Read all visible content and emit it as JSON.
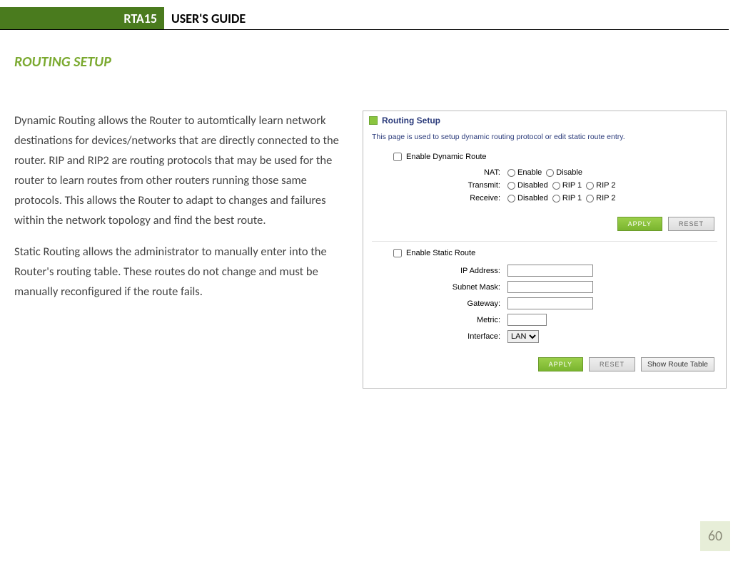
{
  "header": {
    "product": "RTA15",
    "doc_title": "USER'S GUIDE"
  },
  "section_title": "ROUTING SETUP",
  "paragraphs": [
    "Dynamic Routing allows the Router to automtically learn network destinations for devices/networks that are directly connected to the router. RIP and RIP2 are routing protocols that may be used for the router to learn routes from other routers running those same protocols. This allows the Router to adapt to changes and failures within the network topology and find the best route.",
    "Static Routing allows the administrator to manually enter into the Router's routing table. These routes do not change and must be manually reconfigured if the route fails."
  ],
  "screenshot": {
    "panel_title": "Routing Setup",
    "panel_desc": "This page is used to setup dynamic routing protocol or edit static route entry.",
    "dynamic": {
      "enable_label": "Enable Dynamic Route",
      "nat_label": "NAT:",
      "nat_options": [
        "Enable",
        "Disable"
      ],
      "transmit_label": "Transmit:",
      "transmit_options": [
        "Disabled",
        "RIP 1",
        "RIP 2"
      ],
      "receive_label": "Receive:",
      "receive_options": [
        "Disabled",
        "RIP 1",
        "RIP 2"
      ]
    },
    "static": {
      "enable_label": "Enable Static Route",
      "ip_label": "IP Address:",
      "mask_label": "Subnet Mask:",
      "gateway_label": "Gateway:",
      "metric_label": "Metric:",
      "interface_label": "Interface:",
      "interface_value": "LAN"
    },
    "buttons": {
      "apply": "APPLY",
      "reset": "RESET",
      "show_table": "Show Route Table"
    },
    "colors": {
      "accent_green": "#8bc53f",
      "header_green": "#4a7b1e",
      "title_blue": "#2a3a7a"
    }
  },
  "page_number": "60"
}
